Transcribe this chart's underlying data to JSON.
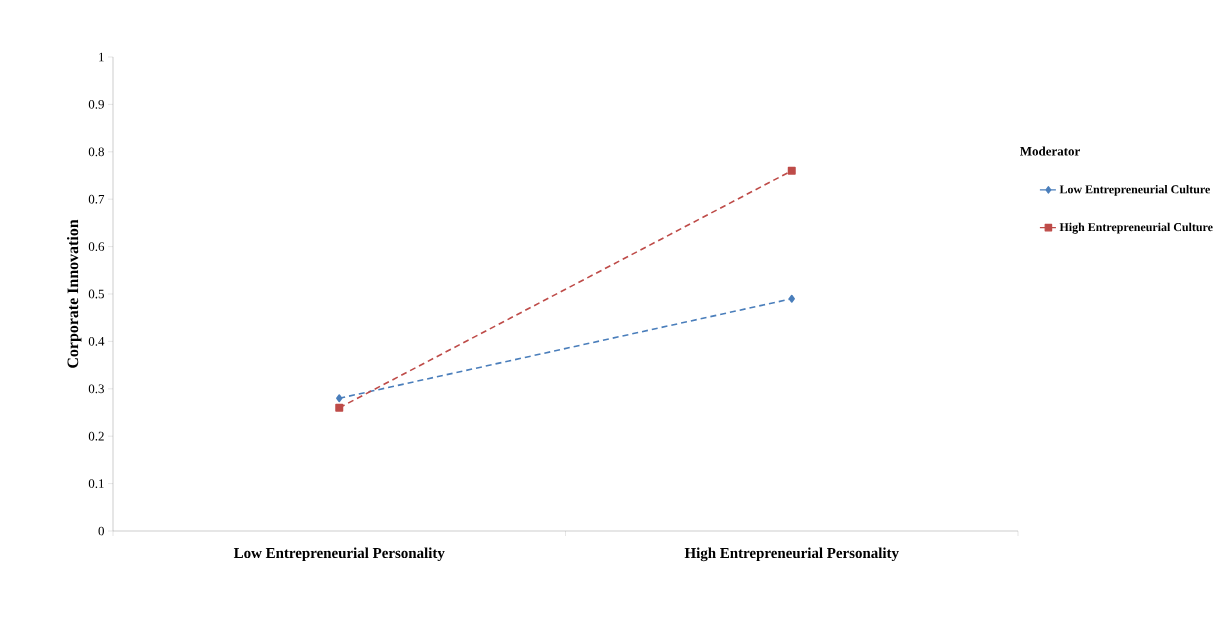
{
  "chart_data": {
    "type": "line",
    "ylabel": "Corporate Innovation",
    "categories": [
      "Low Entrepreneurial Personality",
      "High Entrepreneurial Personality"
    ],
    "series": [
      {
        "name": "Low Entrepreneurial Culture",
        "color": "#4a7ebb",
        "values": [
          0.28,
          0.49
        ],
        "marker": "diamond",
        "line_style": "dashed"
      },
      {
        "name": "High Entrepreneurial Culture",
        "color": "#be4b48",
        "values": [
          0.26,
          0.76
        ],
        "marker": "square",
        "line_style": "dashed"
      }
    ],
    "ylim": [
      0,
      1
    ],
    "yticks": [
      0,
      0.1,
      0.2,
      0.3,
      0.4,
      0.5,
      0.6,
      0.7,
      0.8,
      0.9,
      1
    ],
    "legend": "right",
    "legend_title": "Moderator",
    "grid": false
  }
}
